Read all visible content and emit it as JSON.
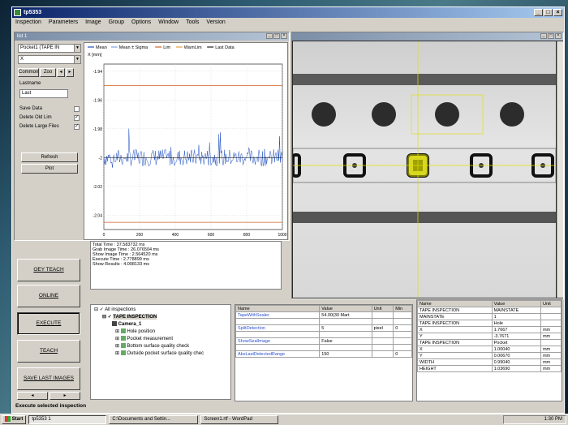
{
  "app": {
    "title": "tp5353"
  },
  "menu": [
    "Inspection",
    "Parameters",
    "Image",
    "Group",
    "Options",
    "Window",
    "Tools",
    "Version"
  ],
  "left_panel": {
    "title": "list 1",
    "pocket_select": "Pocket1 (TAPE IN",
    "x_select": "X",
    "tabs": [
      "Common",
      "Zoo"
    ],
    "lastname_label": "Lastname",
    "lastname_value": "Last",
    "save_data": "Save Data",
    "delete_old": "Delete Old Lim",
    "delete_large": "Delete Large Files",
    "btn_refresh": "Refresh",
    "btn_plot": "Plot"
  },
  "chart_data": {
    "type": "line",
    "legend": [
      "Mean",
      "Mean ± Sigma",
      "Lim",
      "WarnLim",
      "Last Data"
    ],
    "ylabel": "X [mm]",
    "yticks": [
      "-1.94",
      "-1.96",
      "-1.98",
      "-2",
      "-2.02",
      "-2.04"
    ],
    "xticks": [
      "0",
      "200",
      "400",
      "600",
      "800",
      "1000"
    ],
    "xlim": [
      0,
      1000
    ],
    "ylim": [
      -2.05,
      -1.935
    ],
    "mean": -2.0,
    "limit_upper": -1.95,
    "limit_lower": -2.045
  },
  "left_buttons": [
    "OEY TEACH",
    "ONLINE",
    "EXECUTE",
    "TEACH",
    "SAVE LAST IMAGES"
  ],
  "stats": [
    "Total Time : 37.583732 ms",
    "Grab Image Time : 26.076504 ms",
    "Show Image Time : 2.564520 ms",
    "Execute Time : 2.778899 ms",
    "Show Results : 4.008133 ms"
  ],
  "tree": [
    "All inspections",
    "TAPE INSPECTION",
    "Camera_1",
    "Hole position",
    "Pocket measurement",
    "Bottom surface quality check",
    "Outside pocket surface quality chec"
  ],
  "param_table": {
    "headers": [
      "Name",
      "Value",
      "Unit",
      "Min"
    ],
    "rows": [
      [
        "TapeWithSealer",
        "54.00(30 Mart",
        "",
        ""
      ],
      [
        "SplitDetection",
        "5",
        "pixel",
        "0"
      ],
      [
        "ShowSealImage",
        "False",
        "",
        ""
      ],
      [
        "AbsLastDetectedRange",
        "150",
        "",
        "0"
      ]
    ]
  },
  "result_table": {
    "headers": [
      "Name",
      "Value",
      "Unit"
    ],
    "rows": [
      [
        "TAPE INSPECTION",
        "MAINSTATE",
        ""
      ],
      [
        "MAINSTATE",
        "1",
        ""
      ],
      [
        "TAPE INSPECTION",
        "Hole",
        ""
      ],
      [
        "X",
        "1.7667",
        "mm"
      ],
      [
        "Y",
        "-3.7671",
        "mm"
      ],
      [
        "TAPE INSPECTION",
        "Pocket",
        ""
      ],
      [
        "X",
        "1.00040",
        "mm"
      ],
      [
        "Y",
        "0.00670",
        "mm"
      ],
      [
        "WIDTH",
        "0.99040",
        "mm"
      ],
      [
        "HEIGHT",
        "1.03690",
        "mm"
      ]
    ]
  },
  "status": "Execute selected inspection",
  "taskbar": {
    "start": "Start",
    "items": [
      "tp5353 1",
      "C:\\Documents and Settin...",
      "Screen1.rtf - WordPad"
    ],
    "clock": "1:30 PM"
  }
}
